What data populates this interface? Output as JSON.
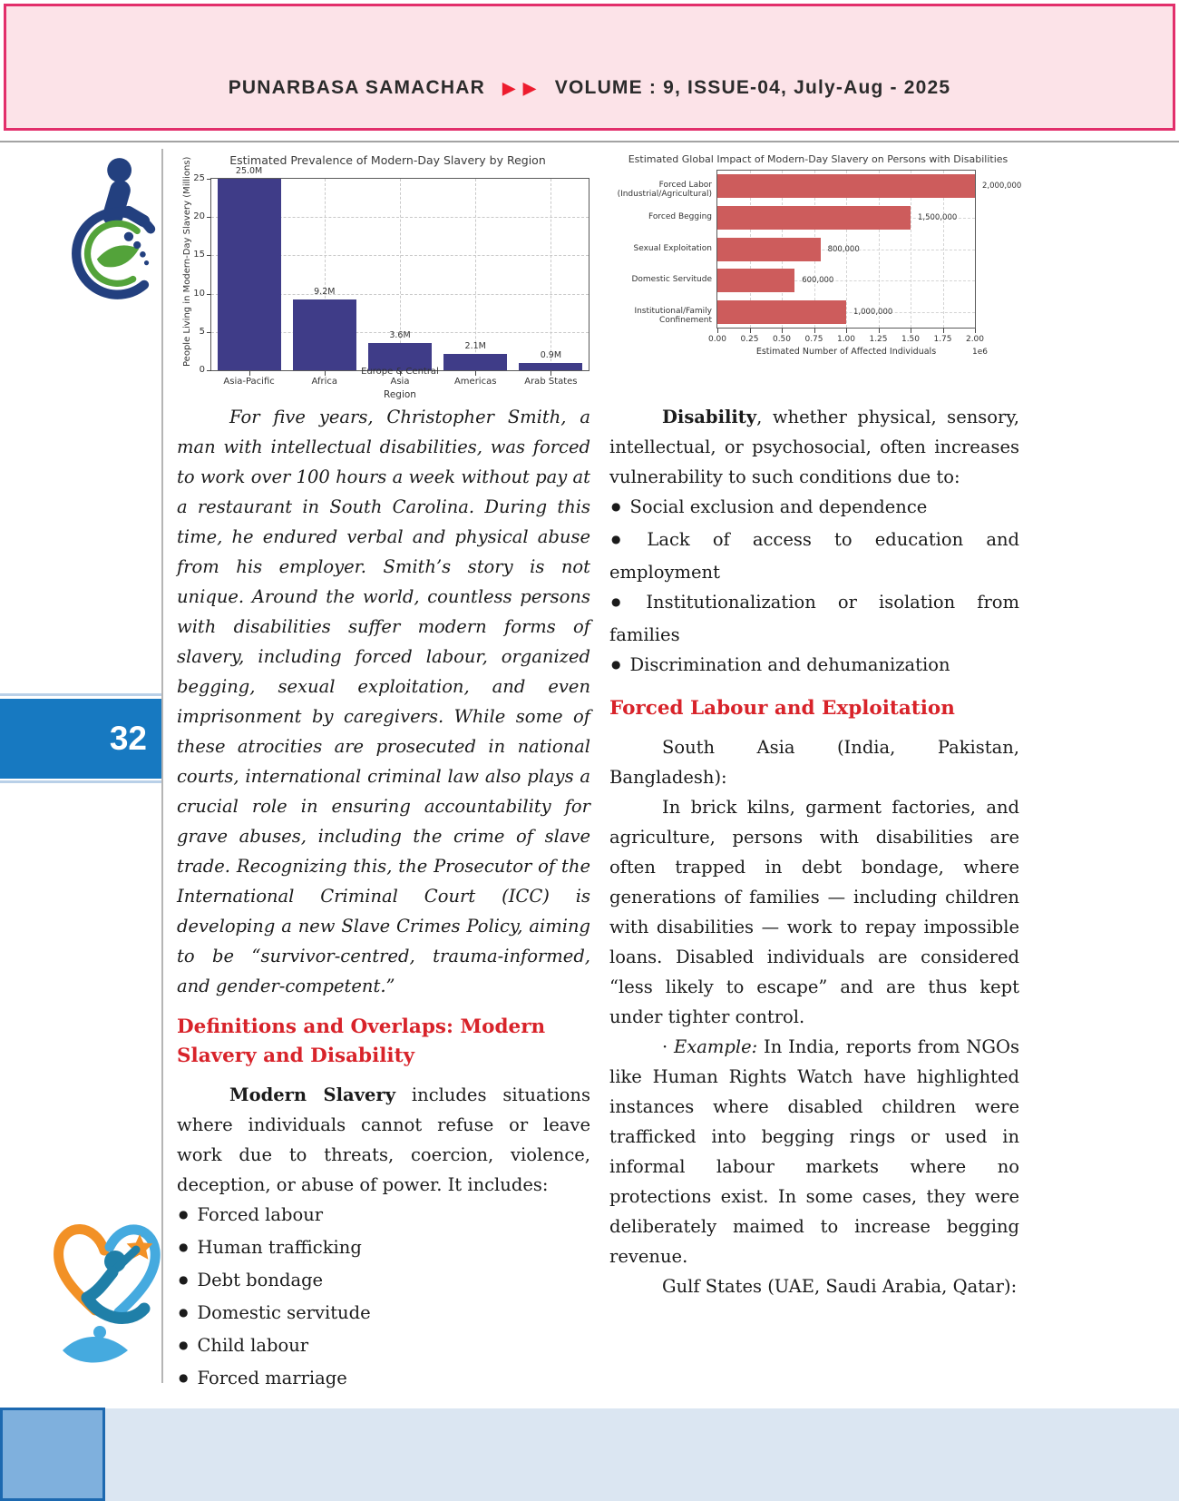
{
  "header": {
    "title": "PUNARBASA SAMACHAR",
    "arrows": "▶ ▶",
    "issue": "VOLUME : 9, ISSUE-04,  July-Aug - 2025"
  },
  "page_badge": "32",
  "chart_data": [
    {
      "type": "bar",
      "title": "Estimated Prevalence of Modern-Day Slavery by Region",
      "categories": [
        "Asia-Pacific",
        "Africa",
        "Europe & Central Asia",
        "Americas",
        "Arab States"
      ],
      "values": [
        25.0,
        9.2,
        3.6,
        2.1,
        0.9
      ],
      "bar_labels": [
        "25.0M",
        "9.2M",
        "3.6M",
        "2.1M",
        "0.9M"
      ],
      "xlabel": "Region",
      "ylabel": "People Living in Modern-Day Slavery (Millions)",
      "ylim": [
        0,
        25
      ],
      "yticks": [
        0,
        5,
        10,
        15,
        20,
        25
      ],
      "bar_color": "#3f3c88",
      "grid": "dashed"
    },
    {
      "type": "bar-horizontal",
      "title": "Estimated Global Impact of Modern-Day Slavery on Persons with Disabilities",
      "categories": [
        "Forced Labor (Industrial/Agricultural)",
        "Forced Begging",
        "Sexual Exploitation",
        "Domestic Servitude",
        "Institutional/Family Confinement"
      ],
      "values": [
        2000000,
        1500000,
        800000,
        600000,
        1000000
      ],
      "value_labels": [
        "2,000,000",
        "1,500,000",
        "800,000",
        "600,000",
        "1,000,000"
      ],
      "xlabel": "Estimated Number of Affected Individuals",
      "xlim": [
        0,
        2000000
      ],
      "xticks": [
        "0.00",
        "0.25",
        "0.50",
        "0.75",
        "1.00",
        "1.25",
        "1.50",
        "1.75",
        "2.00"
      ],
      "scale_note": "1e6",
      "bar_color": "#cd5c5c",
      "grid": "dashed"
    }
  ],
  "left_column": {
    "intro": "For five years, Christopher Smith, a man with intellectual disabilities, was forced to work over 100 hours a week without pay at a restaurant in South Carolina. During this time, he endured verbal and physical abuse from his employer. Smith’s story is not unique. Around the world, countless persons with disabilities suffer modern forms of slavery, including forced labour, organized begging, sexual exploitation, and even imprisonment by caregivers. While some of these atrocities are prosecuted in national courts, international criminal law also plays a crucial role in ensuring accountability for grave abuses, including the crime of slave trade. Recognizing this, the Prosecutor of the International Criminal Court (ICC) is developing a new Slave Crimes Policy, aiming to be “survivor-centred, trauma-informed, and gender-competent.”",
    "heading": "Definitions and Overlaps: Modern Slavery and Disability",
    "modern_slavery_lead": "Modern Slavery",
    "modern_slavery_rest": " includes situations where individuals cannot refuse or leave work due to threats, coercion, violence, deception, or abuse of power. It includes:",
    "bullets": [
      "Forced labour",
      "Human trafficking",
      "Debt bondage",
      "Domestic servitude",
      "Child labour",
      "Forced marriage"
    ]
  },
  "right_column": {
    "disability_lead": "Disability",
    "disability_rest": ", whether physical, sensory, intellectual, or psychosocial, often increases vulnerability to such conditions due to:",
    "bullets": [
      "Social exclusion and dependence",
      "Lack of access to education and employment",
      "Institutionalization or isolation from families",
      "Discrimination and dehumanization"
    ],
    "heading": "Forced Labour and Exploitation",
    "south_asia": "South Asia (India, Pakistan, Bangladesh):",
    "brick_kilns": "In brick kilns, garment factories, and agriculture, persons with disabilities are often trapped in debt bondage, where generations of families — including children with disabilities — work to repay impossible loans. Disabled individuals are considered “less likely to escape” and are thus kept under tighter control.",
    "example_prefix": "· ",
    "example_lead": "Example:",
    "example_rest": " In India, reports from NGOs like Human Rights Watch have highlighted instances where disabled children were trafficked into begging rings or used in informal labour markets where no protections exist. In some cases, they were deliberately maimed to increase begging revenue.",
    "gulf_states": "Gulf States (UAE, Saudi Arabia, Qatar):"
  }
}
